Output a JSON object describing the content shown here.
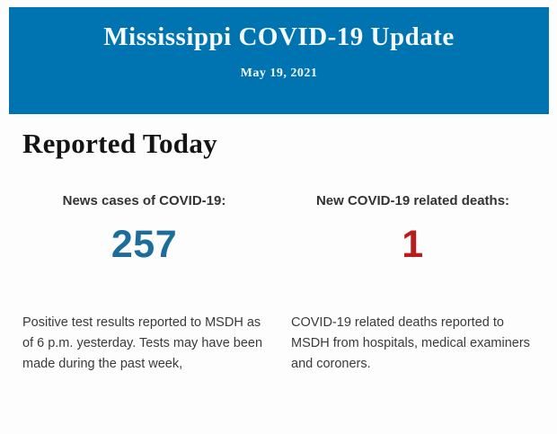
{
  "banner": {
    "title": "Mississippi COVID-19 Update",
    "date": "May 19, 2021",
    "background_color": "#0073b1",
    "text_color": "#f4fafd"
  },
  "section": {
    "heading": "Reported Today"
  },
  "stats": [
    {
      "label": "News cases of COVID-19:",
      "value": "257",
      "value_color": "#1c6d9c",
      "description": "Positive test results reported to MSDH as of 6 p.m. yesterday. Tests may have been made during the past week,"
    },
    {
      "label": "New COVID-19 related deaths:",
      "value": "1",
      "value_color": "#b71d1d",
      "description": "COVID-19 related deaths reported to MSDH from hospitals, medical examiners and coroners."
    }
  ]
}
